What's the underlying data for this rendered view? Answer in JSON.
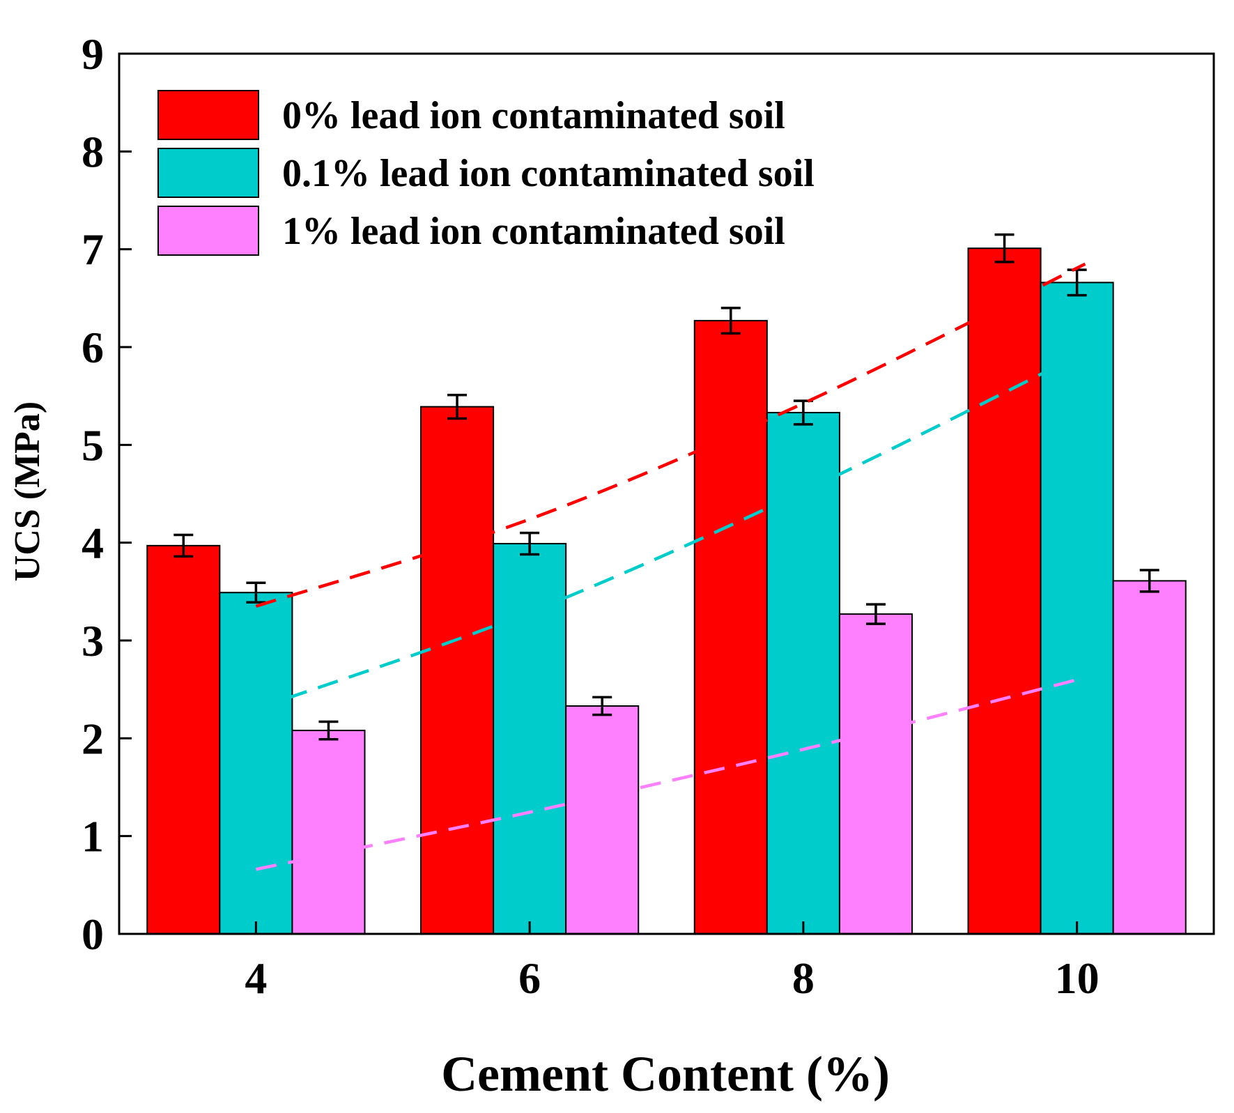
{
  "chart_data": {
    "type": "bar",
    "title": "",
    "xlabel": "Cement Content (%)",
    "ylabel": "UCS (MPa)",
    "categories": [
      "4",
      "6",
      "8",
      "10"
    ],
    "ylim": [
      0,
      9
    ],
    "yticks": [
      0,
      1,
      2,
      3,
      4,
      5,
      6,
      7,
      8,
      9
    ],
    "legend_position": "top-left",
    "grid": false,
    "series": [
      {
        "name": "0% lead ion contaminated soil",
        "color": "#ff0000",
        "values": [
          3.97,
          5.39,
          6.27,
          7.01
        ],
        "errors": [
          0.11,
          0.12,
          0.13,
          0.14
        ],
        "trend": [
          3.35,
          4.25,
          5.45,
          6.85
        ]
      },
      {
        "name": "0.1% lead ion contaminated soil",
        "color": "#00cccc",
        "values": [
          3.49,
          3.99,
          5.33,
          6.66
        ],
        "errors": [
          0.1,
          0.11,
          0.12,
          0.13
        ],
        "trend": [
          2.3,
          3.3,
          4.55,
          5.95
        ]
      },
      {
        "name": "1% lead ion contaminated soil",
        "color": "#ff80ff",
        "values": [
          2.08,
          2.33,
          3.27,
          3.61
        ],
        "errors": [
          0.09,
          0.09,
          0.1,
          0.11
        ],
        "trend": [
          0.66,
          1.25,
          1.9,
          2.62
        ]
      }
    ]
  }
}
